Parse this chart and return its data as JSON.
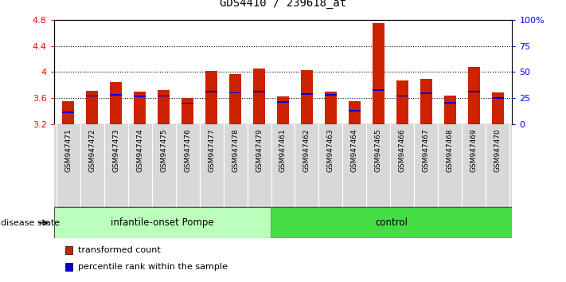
{
  "title": "GDS4410 / 239618_at",
  "samples": [
    "GSM947471",
    "GSM947472",
    "GSM947473",
    "GSM947474",
    "GSM947475",
    "GSM947476",
    "GSM947477",
    "GSM947478",
    "GSM947479",
    "GSM947461",
    "GSM947462",
    "GSM947463",
    "GSM947464",
    "GSM947465",
    "GSM947466",
    "GSM947467",
    "GSM947468",
    "GSM947469",
    "GSM947470"
  ],
  "transformed_count": [
    3.55,
    3.71,
    3.85,
    3.7,
    3.72,
    3.6,
    4.01,
    3.97,
    4.05,
    3.63,
    4.03,
    3.7,
    3.55,
    4.75,
    3.87,
    3.89,
    3.64,
    4.08,
    3.69
  ],
  "percentile_pos": [
    3.38,
    3.63,
    3.65,
    3.62,
    3.63,
    3.52,
    3.7,
    3.68,
    3.7,
    3.54,
    3.66,
    3.65,
    3.4,
    3.72,
    3.63,
    3.67,
    3.53,
    3.7,
    3.6
  ],
  "ymin": 3.2,
  "ymax": 4.8,
  "yticks": [
    3.2,
    3.6,
    4.0,
    4.4,
    4.8
  ],
  "ytick_labels": [
    "3.2",
    "3.6",
    "4",
    "4.4",
    "4.8"
  ],
  "right_yticks_pct": [
    0,
    25,
    50,
    75,
    100
  ],
  "right_yticklabels": [
    "0",
    "25",
    "50",
    "75",
    "100%"
  ],
  "bar_color": "#cc2200",
  "percentile_color": "#0000cc",
  "group1_label": "infantile-onset Pompe",
  "group2_label": "control",
  "group1_color": "#bbffbb",
  "group2_color": "#44dd44",
  "disease_state_label": "disease state",
  "legend1": "transformed count",
  "legend2": "percentile rank within the sample",
  "bar_width": 0.5,
  "label_bg_color": "#d8d8d8",
  "group1_count": 9,
  "group2_count": 10
}
